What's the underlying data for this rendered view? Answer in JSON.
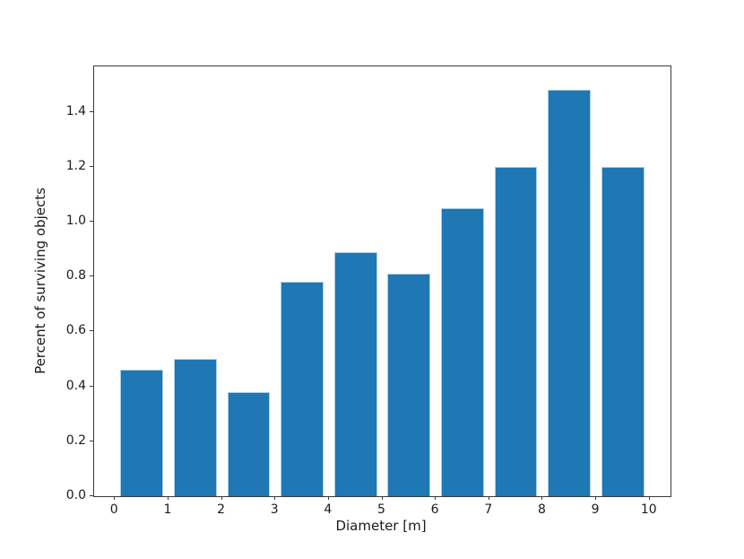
{
  "chart_data": {
    "type": "bar",
    "title": "",
    "xlabel": "Diameter [m]",
    "ylabel": "Percent of surviving objects",
    "x": [
      0.5,
      1.5,
      2.5,
      3.5,
      4.5,
      5.5,
      6.5,
      7.5,
      8.5,
      9.5
    ],
    "values": [
      0.46,
      0.5,
      0.38,
      0.78,
      0.89,
      0.81,
      1.05,
      1.2,
      1.48,
      1.2
    ],
    "bar_width": 0.8,
    "xlim": [
      -0.39,
      10.39
    ],
    "ylim": [
      0,
      1.565
    ],
    "xticks": {
      "values": [
        0,
        1,
        2,
        3,
        4,
        5,
        6,
        7,
        8,
        9,
        10
      ],
      "labels": [
        "0",
        "1",
        "2",
        "3",
        "4",
        "5",
        "6",
        "7",
        "8",
        "9",
        "10"
      ]
    },
    "yticks": {
      "values": [
        0.0,
        0.2,
        0.4,
        0.6,
        0.8,
        1.0,
        1.2,
        1.4
      ],
      "labels": [
        "0.0",
        "0.2",
        "0.4",
        "0.6",
        "0.8",
        "1.0",
        "1.2",
        "1.4"
      ]
    },
    "grid": false,
    "legend": null,
    "bar_color": "#1f77b4",
    "bar_edge_color": "#a9cfe5",
    "spine_color": "#3a3a3a",
    "background_color": "#ffffff"
  }
}
